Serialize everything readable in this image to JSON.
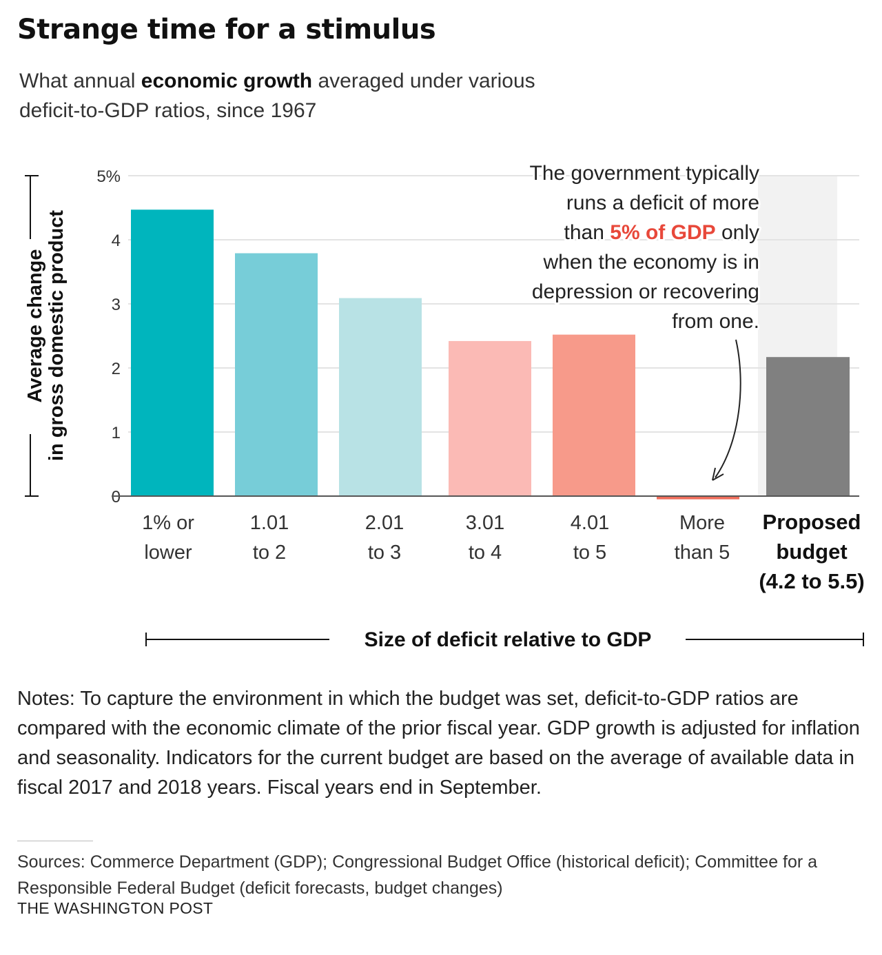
{
  "header": {
    "title": "Strange time for a stimulus",
    "subtitle_before": "What annual ",
    "subtitle_bold": "economic growth",
    "subtitle_after": " averaged under various deficit-to-GDP ratios, since 1967"
  },
  "chart_data": {
    "type": "bar",
    "ylabel_line1": "Average change",
    "ylabel_line2": "in gross domestic product",
    "xlabel": "Size of deficit relative to GDP",
    "ylim": [
      0,
      5
    ],
    "yticks": [
      "0",
      "1",
      "2",
      "3",
      "4",
      "5%"
    ],
    "grid": true,
    "categories": [
      [
        "1% or",
        "lower"
      ],
      [
        "1.01",
        "to 2"
      ],
      [
        "2.01",
        "to 3"
      ],
      [
        "3.01",
        "to 4"
      ],
      [
        "4.01",
        "to 5"
      ],
      [
        "More",
        "than 5"
      ],
      [
        "Proposed",
        "budget",
        "(4.2 to 5.5)"
      ]
    ],
    "values": [
      4.47,
      3.79,
      3.09,
      2.42,
      2.52,
      -0.05,
      2.17
    ],
    "colors": [
      "#00b5bd",
      "#77cdd8",
      "#b8e2e5",
      "#fbbab5",
      "#f79a8a",
      "#ef6e5c",
      "#808080"
    ],
    "highlight_background": "#f2f2f2",
    "annotation": {
      "lines": [
        [
          "The government typically"
        ],
        [
          "runs a deficit of more"
        ],
        [
          "than ",
          "5% of GDP",
          " only"
        ],
        [
          "when the economy is in"
        ],
        [
          "depression or recovering"
        ],
        [
          "from one."
        ]
      ],
      "highlight_color": "#e8483a"
    }
  },
  "notes": "Notes: To capture the environment in which the budget was set, deficit-to-GDP ratios are compared with the economic climate of the prior fiscal year. GDP growth is adjusted for inflation and seasonality. Indicators for the current budget are based on the average of available data in fiscal 2017 and 2018 years. Fiscal years end in September.",
  "sources": "Sources: Commerce Department (GDP); Congressional Budget Office (historical deficit); Committee for a Responsible Federal Budget (deficit forecasts, budget changes)",
  "credit": "THE WASHINGTON POST"
}
